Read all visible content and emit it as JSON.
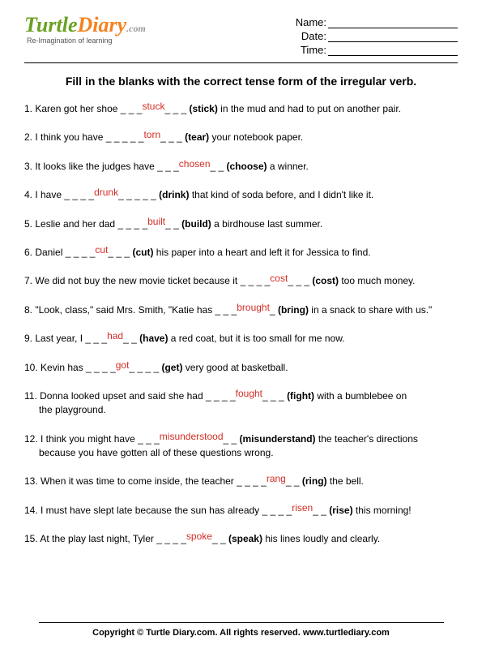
{
  "logo": {
    "t": "Turtle",
    "d": "Diary",
    "dotcom": ".com",
    "tagline": "Re-Imagination of learning"
  },
  "meta": {
    "name": "Name:",
    "date": "Date:",
    "time": "Time:"
  },
  "instructions": "Fill in the blanks with the correct tense form of the irregular verb.",
  "q": [
    {
      "pre": "1. Karen got her shoe _ _ _",
      "ans": "stuck",
      "mid": "_ _ _ ",
      "hint": "(stick)",
      "post": " in the mud and had to put on another pair."
    },
    {
      "pre": "2. I think you have _ _ _ _ _",
      "ans": "torn",
      "mid": "_ _ _ ",
      "hint": "(tear)",
      "post": " your notebook paper."
    },
    {
      "pre": "3. It looks like the judges have _ _ _",
      "ans": "chosen",
      "mid": "_ _ ",
      "hint": "(choose)",
      "post": " a winner."
    },
    {
      "pre": "4. I have _ _ _ _",
      "ans": "drunk",
      "mid": "_ _ _ _ _ ",
      "hint": "(drink)",
      "post": " that kind of soda before, and I didn't like it."
    },
    {
      "pre": "5. Leslie and her dad _ _ _ _",
      "ans": "built",
      "mid": "_ _ ",
      "hint": "(build)",
      "post": " a birdhouse last summer."
    },
    {
      "pre": "6. Daniel _ _ _ _",
      "ans": "cut",
      "mid": "_ _ _ ",
      "hint": "(cut)",
      "post": " his paper into a heart and left it for Jessica to find."
    },
    {
      "pre": "7. We did not buy the new movie ticket because it _ _ _ _",
      "ans": "cost",
      "mid": "_ _ _ ",
      "hint": "(cost)",
      "post": " too much money."
    },
    {
      "pre": "8. \"Look, class,\" said Mrs. Smith, \"Katie has _ _ _",
      "ans": "brought",
      "mid": "_ ",
      "hint": "(bring)",
      "post": " in a snack to share with us.\""
    },
    {
      "pre": "9. Last year, I _ _ _",
      "ans": "had",
      "mid": "_ _ ",
      "hint": "(have)",
      "post": " a red coat, but it is too small for me now."
    },
    {
      "pre": "10. Kevin has _ _ _ _",
      "ans": "got",
      "mid": "_ _ _ _ ",
      "hint": "(get)",
      "post": " very good at basketball."
    },
    {
      "pre": "11. Donna looked upset and said she had _ _ _ _",
      "ans": "fought",
      "mid": "_ _ _ ",
      "hint": "(fight)",
      "post": " with a bumblebee on",
      "post2": "the playground."
    },
    {
      "pre": "12. I think you might have _ _ _",
      "ans": "misunderstood",
      "mid": "_ _ ",
      "hint": "(misunderstand)",
      "post": " the teacher's directions",
      "post2": "because you have gotten all of these questions wrong."
    },
    {
      "pre": "13. When it was time to come inside, the teacher _ _ _ _",
      "ans": "rang",
      "mid": "_ _ ",
      "hint": "(ring)",
      "post": " the bell."
    },
    {
      "pre": "14. I must have slept late because the sun has already _ _ _ _",
      "ans": "risen",
      "mid": "_ _ ",
      "hint": "(rise)",
      "post": " this morning!"
    },
    {
      "pre": "15. At the play last night, Tyler _ _ _ _",
      "ans": "spoke",
      "mid": "_ _ ",
      "hint": "(speak)",
      "post": " his lines loudly and clearly."
    }
  ],
  "footer": "Copyright © Turtle Diary.com. All rights reserved.   www.turtlediary.com"
}
